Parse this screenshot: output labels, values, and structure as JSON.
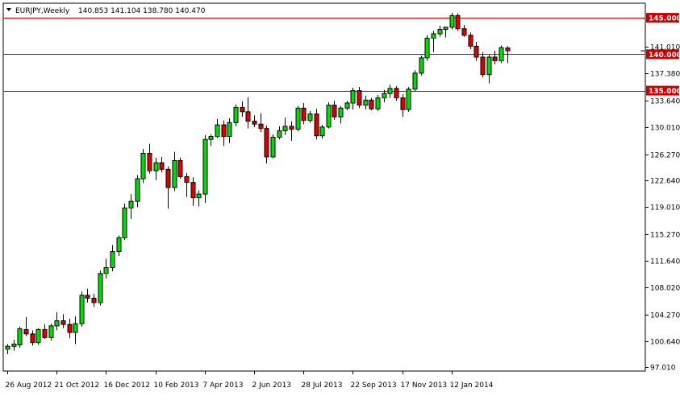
{
  "header": {
    "symbol": "EURJPY,Weekly",
    "ohlc": "140.853 141.104 138.780 140.470"
  },
  "colors": {
    "bull": "#00dd00",
    "bear": "#dd0000",
    "wick": "#000000",
    "level_line": "#cc0000",
    "level_label_bg": "#cc0000",
    "level_label_text": "#ffffff",
    "current_label_bg": "#000000",
    "current_label_text": "#ffffff"
  },
  "chart_data": {
    "type": "candlestick",
    "title": "EURJPY,Weekly",
    "x_tick_labels": [
      "26 Aug 2012",
      "21 Oct 2012",
      "16 Dec 2012",
      "10 Feb 2013",
      "7 Apr 2013",
      "2 Jun 2013",
      "28 Jul 2013",
      "22 Sep 2013",
      "17 Nov 2013",
      "12 Jan 2014"
    ],
    "y_tick_labels": [
      "97.010",
      "100.640",
      "104.270",
      "108.020",
      "111.640",
      "115.270",
      "119.010",
      "122.640",
      "126.270",
      "130.010",
      "133.640",
      "137.380",
      "141.010"
    ],
    "y_ticks": [
      97.01,
      100.64,
      104.27,
      108.02,
      111.64,
      115.27,
      119.01,
      122.64,
      126.27,
      130.01,
      133.64,
      137.38,
      141.01
    ],
    "ylim": [
      96.5,
      147.0
    ],
    "horizontal_levels": [
      {
        "value": 145.0,
        "label": "145.000"
      },
      {
        "value": 140.0,
        "label": "140.000"
      },
      {
        "value": 135.0,
        "label": "135.000"
      }
    ],
    "current_price": {
      "value": 140.47,
      "label": "140.470"
    },
    "grid": false,
    "candles": [
      {
        "date": "26 Aug 2012",
        "o": 99.5,
        "h": 100.2,
        "l": 98.8,
        "c": 99.9
      },
      {
        "date": "2 Sep 2012",
        "o": 99.9,
        "h": 100.8,
        "l": 99.3,
        "c": 100.2
      },
      {
        "date": "9 Sep 2012",
        "o": 100.1,
        "h": 102.6,
        "l": 99.7,
        "c": 102.3
      },
      {
        "date": "16 Sep 2012",
        "o": 102.2,
        "h": 103.9,
        "l": 101.3,
        "c": 101.6
      },
      {
        "date": "23 Sep 2012",
        "o": 101.6,
        "h": 102.1,
        "l": 100.0,
        "c": 100.4
      },
      {
        "date": "30 Sep 2012",
        "o": 100.4,
        "h": 102.4,
        "l": 100.1,
        "c": 102.2
      },
      {
        "date": "7 Oct 2012",
        "o": 102.2,
        "h": 102.9,
        "l": 100.9,
        "c": 101.1
      },
      {
        "date": "14 Oct 2012",
        "o": 101.1,
        "h": 103.0,
        "l": 100.7,
        "c": 102.7
      },
      {
        "date": "21 Oct 2012",
        "o": 102.7,
        "h": 104.6,
        "l": 102.1,
        "c": 103.4
      },
      {
        "date": "28 Oct 2012",
        "o": 103.4,
        "h": 104.3,
        "l": 102.4,
        "c": 102.9
      },
      {
        "date": "4 Nov 2012",
        "o": 102.9,
        "h": 103.7,
        "l": 101.0,
        "c": 101.8
      },
      {
        "date": "11 Nov 2012",
        "o": 101.8,
        "h": 104.0,
        "l": 100.2,
        "c": 103.0
      },
      {
        "date": "18 Nov 2012",
        "o": 103.0,
        "h": 107.4,
        "l": 102.6,
        "c": 106.9
      },
      {
        "date": "25 Nov 2012",
        "o": 106.9,
        "h": 107.8,
        "l": 105.9,
        "c": 106.5
      },
      {
        "date": "2 Dec 2012",
        "o": 106.5,
        "h": 107.1,
        "l": 105.3,
        "c": 105.9
      },
      {
        "date": "9 Dec 2012",
        "o": 105.9,
        "h": 110.3,
        "l": 105.5,
        "c": 109.9
      },
      {
        "date": "16 Dec 2012",
        "o": 109.9,
        "h": 111.9,
        "l": 109.2,
        "c": 110.7
      },
      {
        "date": "23 Dec 2012",
        "o": 110.7,
        "h": 113.8,
        "l": 110.2,
        "c": 112.9
      },
      {
        "date": "30 Dec 2012",
        "o": 112.9,
        "h": 115.1,
        "l": 112.3,
        "c": 114.8
      },
      {
        "date": "6 Jan 2013",
        "o": 114.8,
        "h": 119.5,
        "l": 114.5,
        "c": 118.9
      },
      {
        "date": "13 Jan 2013",
        "o": 118.9,
        "h": 120.8,
        "l": 117.4,
        "c": 119.8
      },
      {
        "date": "20 Jan 2013",
        "o": 119.8,
        "h": 123.4,
        "l": 119.0,
        "c": 122.9
      },
      {
        "date": "27 Jan 2013",
        "o": 122.9,
        "h": 127.0,
        "l": 122.3,
        "c": 126.4
      },
      {
        "date": "3 Feb 2013",
        "o": 126.4,
        "h": 127.7,
        "l": 123.6,
        "c": 124.0
      },
      {
        "date": "10 Feb 2013",
        "o": 124.0,
        "h": 125.8,
        "l": 122.7,
        "c": 125.1
      },
      {
        "date": "17 Feb 2013",
        "o": 125.1,
        "h": 125.9,
        "l": 123.8,
        "c": 124.2
      },
      {
        "date": "24 Feb 2013",
        "o": 124.2,
        "h": 124.6,
        "l": 118.8,
        "c": 121.7
      },
      {
        "date": "3 Mar 2013",
        "o": 121.7,
        "h": 126.6,
        "l": 121.2,
        "c": 125.4
      },
      {
        "date": "10 Mar 2013",
        "o": 125.4,
        "h": 125.8,
        "l": 122.9,
        "c": 123.2
      },
      {
        "date": "17 Mar 2013",
        "o": 123.2,
        "h": 123.7,
        "l": 120.4,
        "c": 122.4
      },
      {
        "date": "24 Mar 2013",
        "o": 122.4,
        "h": 123.1,
        "l": 119.2,
        "c": 120.3
      },
      {
        "date": "31 Mar 2013",
        "o": 120.3,
        "h": 121.3,
        "l": 119.1,
        "c": 120.8
      },
      {
        "date": "7 Apr 2013",
        "o": 120.8,
        "h": 128.9,
        "l": 119.6,
        "c": 128.3
      },
      {
        "date": "14 Apr 2013",
        "o": 128.3,
        "h": 129.0,
        "l": 127.4,
        "c": 128.7
      },
      {
        "date": "21 Apr 2013",
        "o": 128.7,
        "h": 131.1,
        "l": 128.5,
        "c": 130.3
      },
      {
        "date": "28 Apr 2013",
        "o": 130.3,
        "h": 130.9,
        "l": 127.4,
        "c": 128.7
      },
      {
        "date": "5 May 2013",
        "o": 128.7,
        "h": 131.2,
        "l": 127.8,
        "c": 130.6
      },
      {
        "date": "12 May 2013",
        "o": 130.6,
        "h": 133.1,
        "l": 130.1,
        "c": 132.7
      },
      {
        "date": "19 May 2013",
        "o": 132.7,
        "h": 133.5,
        "l": 131.4,
        "c": 132.1
      },
      {
        "date": "26 May 2013",
        "o": 132.1,
        "h": 134.1,
        "l": 129.8,
        "c": 130.8
      },
      {
        "date": "2 Jun 2013",
        "o": 130.8,
        "h": 131.6,
        "l": 130.0,
        "c": 130.4
      },
      {
        "date": "9 Jun 2013",
        "o": 130.4,
        "h": 131.9,
        "l": 129.3,
        "c": 129.8
      },
      {
        "date": "16 Jun 2013",
        "o": 129.8,
        "h": 130.2,
        "l": 125.0,
        "c": 125.9
      },
      {
        "date": "23 Jun 2013",
        "o": 125.9,
        "h": 129.0,
        "l": 125.7,
        "c": 128.6
      },
      {
        "date": "30 Jun 2013",
        "o": 128.6,
        "h": 130.1,
        "l": 128.3,
        "c": 129.5
      },
      {
        "date": "7 Jul 2013",
        "o": 129.5,
        "h": 131.3,
        "l": 128.9,
        "c": 130.1
      },
      {
        "date": "14 Jul 2013",
        "o": 130.1,
        "h": 130.8,
        "l": 128.1,
        "c": 129.7
      },
      {
        "date": "21 Jul 2013",
        "o": 129.7,
        "h": 132.9,
        "l": 129.4,
        "c": 132.6
      },
      {
        "date": "28 Jul 2013",
        "o": 132.6,
        "h": 133.3,
        "l": 130.4,
        "c": 130.9
      },
      {
        "date": "4 Aug 2013",
        "o": 130.9,
        "h": 132.2,
        "l": 130.6,
        "c": 131.8
      },
      {
        "date": "11 Aug 2013",
        "o": 131.8,
        "h": 132.5,
        "l": 128.3,
        "c": 128.8
      },
      {
        "date": "18 Aug 2013",
        "o": 128.8,
        "h": 130.3,
        "l": 128.4,
        "c": 130.0
      },
      {
        "date": "25 Aug 2013",
        "o": 130.0,
        "h": 133.4,
        "l": 129.8,
        "c": 133.0
      },
      {
        "date": "1 Sep 2013",
        "o": 133.0,
        "h": 133.6,
        "l": 131.0,
        "c": 131.4
      },
      {
        "date": "8 Sep 2013",
        "o": 131.4,
        "h": 132.9,
        "l": 130.5,
        "c": 132.6
      },
      {
        "date": "15 Sep 2013",
        "o": 132.6,
        "h": 133.6,
        "l": 132.3,
        "c": 133.3
      },
      {
        "date": "22 Sep 2013",
        "o": 133.3,
        "h": 135.4,
        "l": 132.4,
        "c": 135.0
      },
      {
        "date": "29 Sep 2013",
        "o": 135.0,
        "h": 135.5,
        "l": 132.6,
        "c": 133.0
      },
      {
        "date": "6 Oct 2013",
        "o": 133.0,
        "h": 134.3,
        "l": 132.4,
        "c": 133.7
      },
      {
        "date": "13 Oct 2013",
        "o": 133.7,
        "h": 134.0,
        "l": 132.3,
        "c": 132.5
      },
      {
        "date": "20 Oct 2013",
        "o": 132.5,
        "h": 134.4,
        "l": 132.2,
        "c": 134.0
      },
      {
        "date": "27 Oct 2013",
        "o": 134.0,
        "h": 135.1,
        "l": 133.4,
        "c": 134.6
      },
      {
        "date": "3 Nov 2013",
        "o": 134.6,
        "h": 135.8,
        "l": 134.0,
        "c": 135.3
      },
      {
        "date": "10 Nov 2013",
        "o": 135.3,
        "h": 135.6,
        "l": 133.6,
        "c": 134.0
      },
      {
        "date": "17 Nov 2013",
        "o": 134.0,
        "h": 134.5,
        "l": 131.4,
        "c": 132.4
      },
      {
        "date": "24 Nov 2013",
        "o": 132.4,
        "h": 135.5,
        "l": 132.1,
        "c": 135.2
      },
      {
        "date": "1 Dec 2013",
        "o": 135.2,
        "h": 137.8,
        "l": 134.9,
        "c": 137.4
      },
      {
        "date": "8 Dec 2013",
        "o": 137.4,
        "h": 139.8,
        "l": 137.1,
        "c": 139.5
      },
      {
        "date": "15 Dec 2013",
        "o": 139.5,
        "h": 142.6,
        "l": 139.1,
        "c": 142.2
      },
      {
        "date": "22 Dec 2013",
        "o": 142.2,
        "h": 143.2,
        "l": 140.3,
        "c": 142.8
      },
      {
        "date": "29 Dec 2013",
        "o": 142.8,
        "h": 143.9,
        "l": 142.4,
        "c": 143.4
      },
      {
        "date": "5 Jan 2014",
        "o": 143.4,
        "h": 143.8,
        "l": 142.3,
        "c": 143.7
      },
      {
        "date": "12 Jan 2014",
        "o": 143.7,
        "h": 145.7,
        "l": 143.4,
        "c": 145.3
      },
      {
        "date": "19 Jan 2014",
        "o": 145.3,
        "h": 145.6,
        "l": 143.2,
        "c": 143.5
      },
      {
        "date": "26 Jan 2014",
        "o": 143.5,
        "h": 144.0,
        "l": 142.4,
        "c": 142.6
      },
      {
        "date": "2 Feb 2014",
        "o": 142.6,
        "h": 143.0,
        "l": 140.7,
        "c": 141.1
      },
      {
        "date": "9 Feb 2014",
        "o": 141.1,
        "h": 141.7,
        "l": 139.1,
        "c": 139.6
      },
      {
        "date": "16 Feb 2014",
        "o": 139.6,
        "h": 140.3,
        "l": 136.8,
        "c": 137.2
      },
      {
        "date": "23 Feb 2014",
        "o": 137.2,
        "h": 139.9,
        "l": 136.0,
        "c": 139.6
      },
      {
        "date": "2 Mar 2014",
        "o": 139.6,
        "h": 140.5,
        "l": 138.6,
        "c": 139.1
      },
      {
        "date": "9 Mar 2014",
        "o": 139.1,
        "h": 141.2,
        "l": 138.8,
        "c": 140.9
      },
      {
        "date": "16 Mar 2014",
        "o": 140.853,
        "h": 141.104,
        "l": 138.78,
        "c": 140.47
      }
    ]
  }
}
